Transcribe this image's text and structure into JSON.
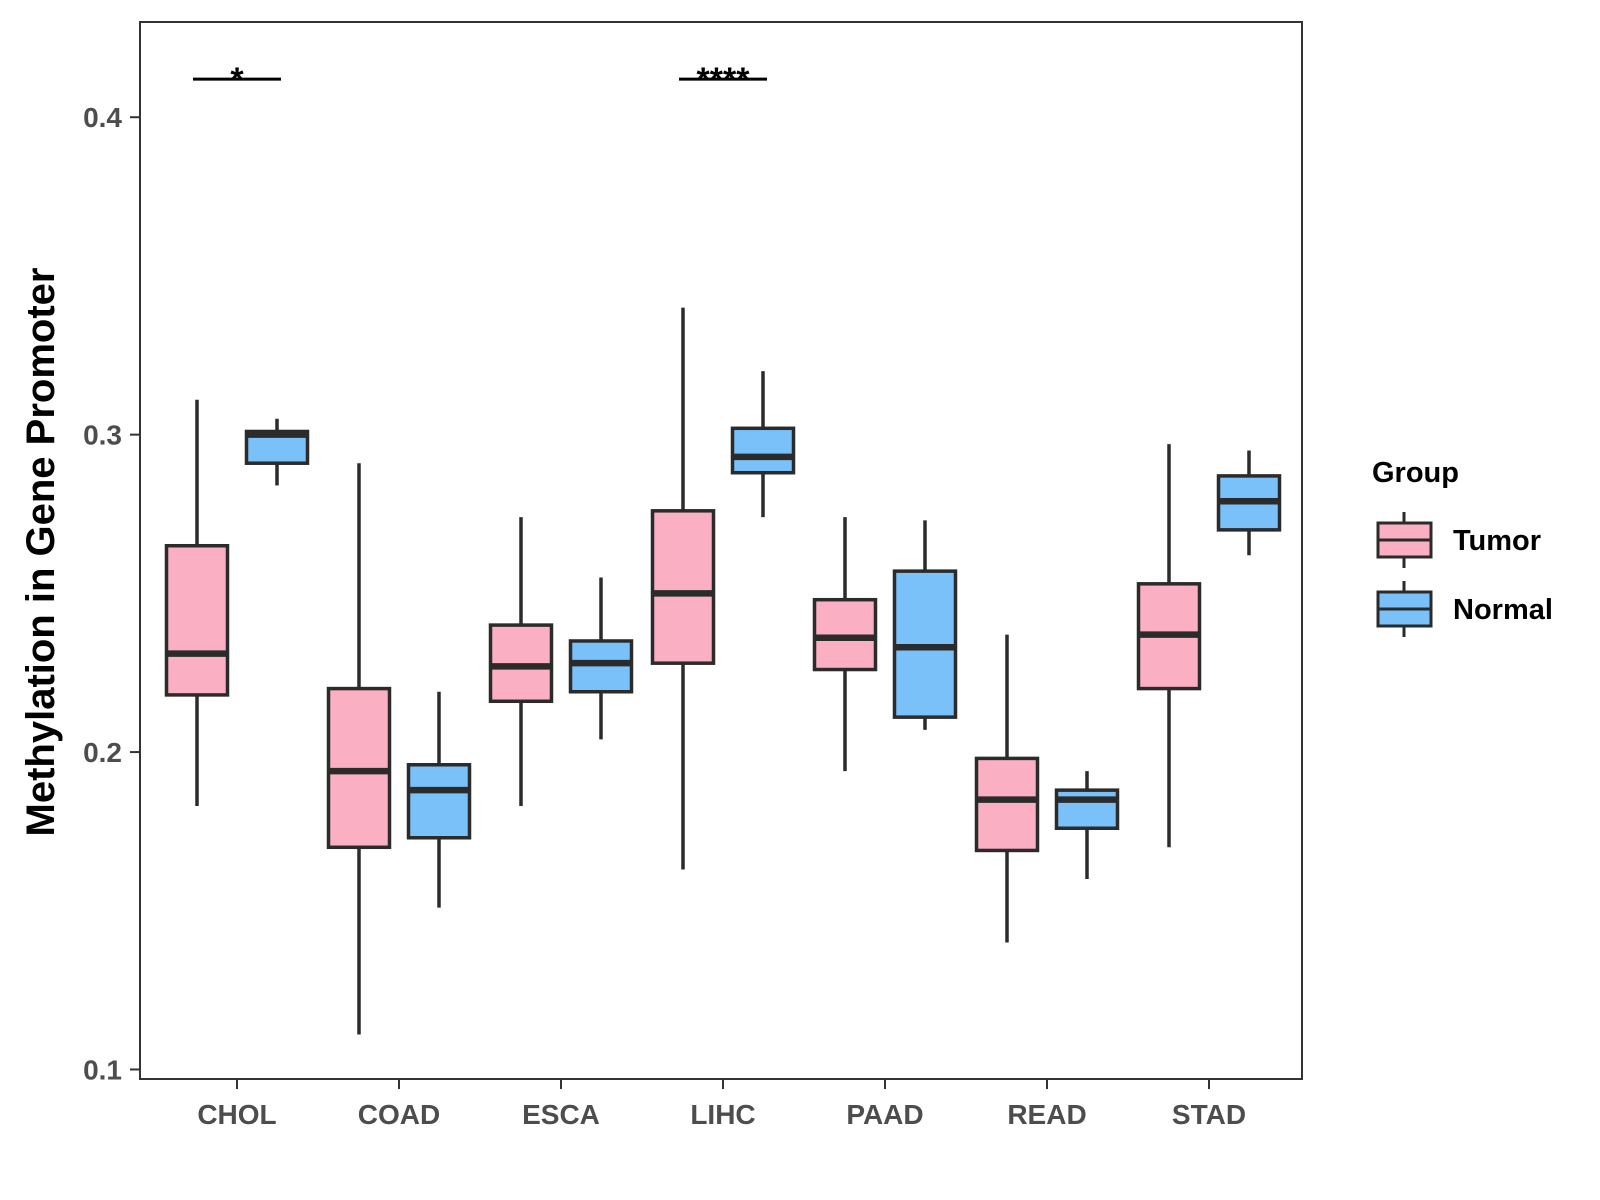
{
  "chart_data": {
    "type": "boxplot",
    "title": "",
    "xlabel": "",
    "ylabel": "Methylation in Gene Promoter",
    "ylim": [
      0.097,
      0.43
    ],
    "yticks": [
      0.1,
      0.2,
      0.3,
      0.4
    ],
    "ytick_labels": [
      "0.1",
      "0.2",
      "0.3",
      "0.4"
    ],
    "categories": [
      "CHOL",
      "COAD",
      "ESCA",
      "LIHC",
      "PAAD",
      "READ",
      "STAD"
    ],
    "legend": {
      "title": "Group",
      "position": "right",
      "entries": [
        {
          "name": "Tumor",
          "color": "#FAAFC2"
        },
        {
          "name": "Normal",
          "color": "#79C1F8"
        }
      ]
    },
    "series": [
      {
        "name": "Tumor",
        "color": "#FAAFC2",
        "boxes": [
          {
            "min": 0.183,
            "q1": 0.218,
            "median": 0.231,
            "q3": 0.265,
            "max": 0.311
          },
          {
            "min": 0.111,
            "q1": 0.17,
            "median": 0.194,
            "q3": 0.22,
            "max": 0.291
          },
          {
            "min": 0.183,
            "q1": 0.216,
            "median": 0.227,
            "q3": 0.24,
            "max": 0.274
          },
          {
            "min": 0.163,
            "q1": 0.228,
            "median": 0.25,
            "q3": 0.276,
            "max": 0.34
          },
          {
            "min": 0.194,
            "q1": 0.226,
            "median": 0.236,
            "q3": 0.248,
            "max": 0.274
          },
          {
            "min": 0.14,
            "q1": 0.169,
            "median": 0.185,
            "q3": 0.198,
            "max": 0.237
          },
          {
            "min": 0.17,
            "q1": 0.22,
            "median": 0.237,
            "q3": 0.253,
            "max": 0.297
          }
        ]
      },
      {
        "name": "Normal",
        "color": "#79C1F8",
        "boxes": [
          {
            "min": 0.284,
            "q1": 0.291,
            "median": 0.3,
            "q3": 0.301,
            "max": 0.305
          },
          {
            "min": 0.151,
            "q1": 0.173,
            "median": 0.188,
            "q3": 0.196,
            "max": 0.219
          },
          {
            "min": 0.204,
            "q1": 0.219,
            "median": 0.228,
            "q3": 0.235,
            "max": 0.255
          },
          {
            "min": 0.274,
            "q1": 0.288,
            "median": 0.293,
            "q3": 0.302,
            "max": 0.32
          },
          {
            "min": 0.207,
            "q1": 0.211,
            "median": 0.233,
            "q3": 0.257,
            "max": 0.273
          },
          {
            "min": 0.16,
            "q1": 0.176,
            "median": 0.185,
            "q3": 0.188,
            "max": 0.194
          },
          {
            "min": 0.262,
            "q1": 0.27,
            "median": 0.279,
            "q3": 0.287,
            "max": 0.295
          }
        ]
      }
    ],
    "annotations": [
      {
        "category": "CHOL",
        "text": "*",
        "y": 0.412
      },
      {
        "category": "LIHC",
        "text": "****",
        "y": 0.412
      }
    ]
  },
  "colors": {
    "box_outline": "#2b2b2b",
    "axis": "#333333",
    "tick_text": "#4d4d4d"
  }
}
